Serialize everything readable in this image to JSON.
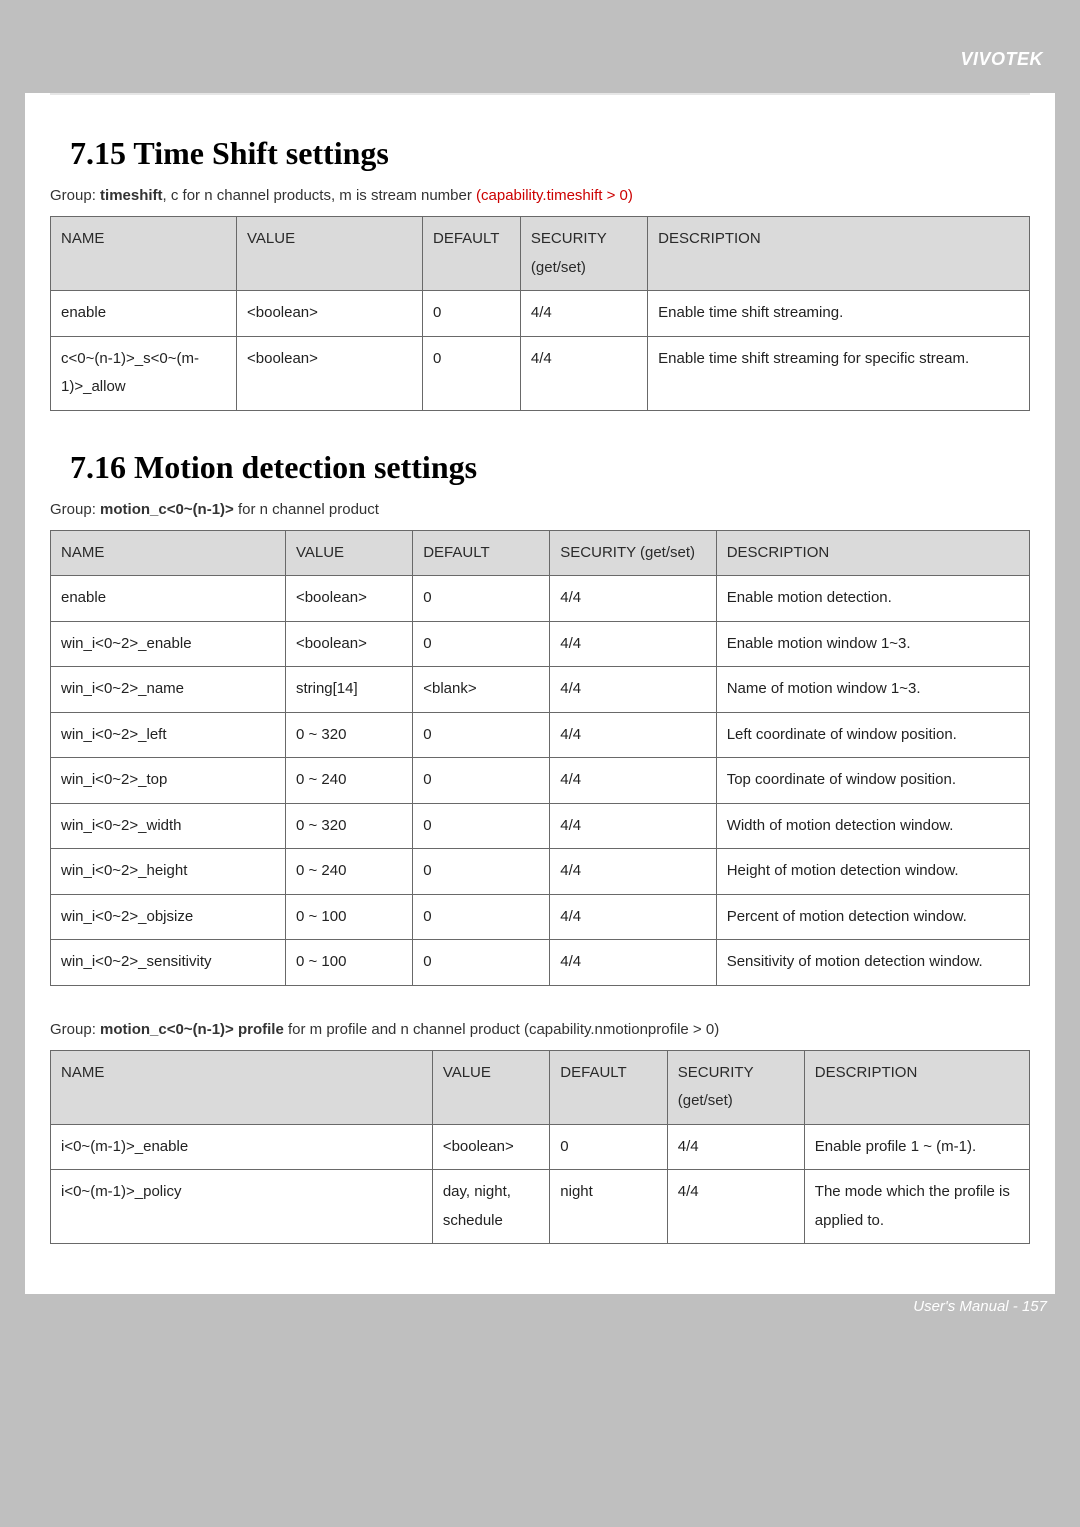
{
  "brand": "VIVOTEK",
  "footer": "User's Manual - 157",
  "section1": {
    "title": "7.15 Time Shift settings",
    "group_prefix": "Group: ",
    "group_bold": "timeshift",
    "group_suffix": ", c for n channel products, m is stream number ",
    "group_red": "(capability.timeshift > 0)",
    "headers": {
      "name": "NAME",
      "value": "VALUE",
      "default": "DEFAULT",
      "security": "SECURITY (get/set)",
      "description": "DESCRIPTION"
    },
    "col_widths": [
      "19%",
      "19%",
      "10%",
      "13%",
      "39%"
    ],
    "rows": [
      {
        "name": "enable",
        "value": "<boolean>",
        "default": "0",
        "security": "4/4",
        "description": "Enable time shift streaming."
      },
      {
        "name": "c<0~(n-1)>_s<0~(m-1)>_allow",
        "value": "<boolean>",
        "default": "0",
        "security": "4/4",
        "description": "Enable time shift streaming for specific stream."
      }
    ]
  },
  "section2": {
    "title": "7.16 Motion detection settings",
    "group_prefix": "Group: ",
    "group_bold": "motion_c<0~(n-1)>",
    "group_suffix": " for n channel product",
    "headers": {
      "name": "NAME",
      "value": "VALUE",
      "default": "DEFAULT",
      "security": "SECURITY (get/set)",
      "description": "DESCRIPTION"
    },
    "col_widths": [
      "24%",
      "13%",
      "14%",
      "17%",
      "32%"
    ],
    "rows": [
      {
        "name": "enable",
        "value": "<boolean>",
        "default": "0",
        "security": "4/4",
        "description": "Enable motion detection."
      },
      {
        "name": "win_i<0~2>_enable",
        "value": "<boolean>",
        "default": "0",
        "security": "4/4",
        "description": "Enable motion window 1~3."
      },
      {
        "name": "win_i<0~2>_name",
        "value": "string[14]",
        "default": "<blank>",
        "security": "4/4",
        "description": "Name of motion window 1~3."
      },
      {
        "name": "win_i<0~2>_left",
        "value": "0 ~ 320",
        "default": "0",
        "security": "4/4",
        "description": "Left coordinate of window position."
      },
      {
        "name": "win_i<0~2>_top",
        "value": "0 ~ 240",
        "default": "0",
        "security": "4/4",
        "description": "Top coordinate of window position."
      },
      {
        "name": "win_i<0~2>_width",
        "value": "0 ~ 320",
        "default": "0",
        "security": "4/4",
        "description": "Width of motion detection window."
      },
      {
        "name": "win_i<0~2>_height",
        "value": "0 ~ 240",
        "default": "0",
        "security": "4/4",
        "description": "Height of motion detection window."
      },
      {
        "name": "win_i<0~2>_objsize",
        "value": "0 ~ 100",
        "default": "0",
        "security": "4/4",
        "description": "Percent of motion detection window."
      },
      {
        "name": "win_i<0~2>_sensitivity",
        "value": "0 ~ 100",
        "default": "0",
        "security": "4/4",
        "description": "Sensitivity of motion detection window."
      }
    ]
  },
  "section3": {
    "group_prefix": "Group: ",
    "group_bold": "motion_c<0~(n-1)> profile",
    "group_suffix": " for m profile and n channel product (capability.nmotionprofile > 0)",
    "headers": {
      "name": "NAME",
      "value": "VALUE",
      "default": "DEFAULT",
      "security": "SECURITY (get/set)",
      "description": "DESCRIPTION"
    },
    "col_widths": [
      "39%",
      "12%",
      "12%",
      "14%",
      "23%"
    ],
    "rows": [
      {
        "name": "i<0~(m-1)>_enable",
        "value": "<boolean>",
        "default": "0",
        "security": "4/4",
        "description": "Enable profile 1 ~ (m-1)."
      },
      {
        "name": "i<0~(m-1)>_policy",
        "value": "day, night, schedule",
        "default": "night",
        "security": "4/4",
        "description": "The mode which the profile is applied to."
      }
    ]
  }
}
